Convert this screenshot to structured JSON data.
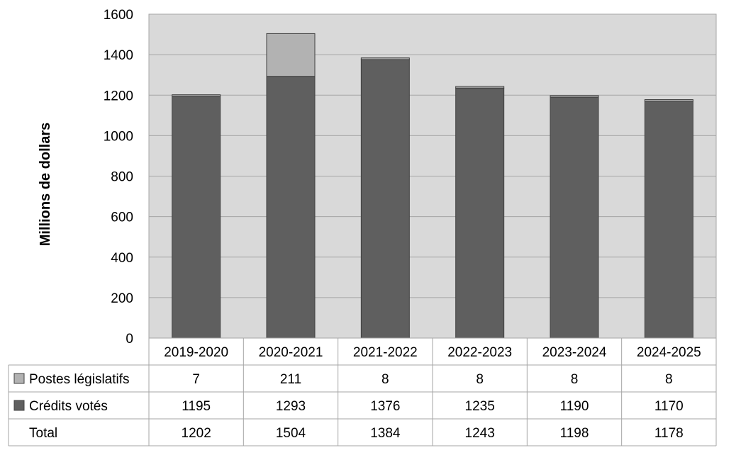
{
  "chart_data": {
    "type": "bar",
    "stacked": true,
    "categories": [
      "2019-2020",
      "2020-2021",
      "2021-2022",
      "2022-2023",
      "2023-2024",
      "2024-2025"
    ],
    "series": [
      {
        "name": "Crédits votés",
        "color": "#5f5f5f",
        "values": [
          1195,
          1293,
          1376,
          1235,
          1190,
          1170
        ]
      },
      {
        "name": "Postes législatifs",
        "color": "#b2b2b2",
        "values": [
          7,
          211,
          8,
          8,
          8,
          8
        ]
      }
    ],
    "totals": {
      "label": "Total",
      "values": [
        1202,
        1504,
        1384,
        1243,
        1198,
        1178
      ]
    },
    "ylabel": "Millions de dollars",
    "ylim": [
      0,
      1600
    ],
    "yticks": [
      0,
      200,
      400,
      600,
      800,
      1000,
      1200,
      1400,
      1600
    ],
    "grid": true,
    "plot_background": "#d9d9d9",
    "legend": "data-table"
  }
}
